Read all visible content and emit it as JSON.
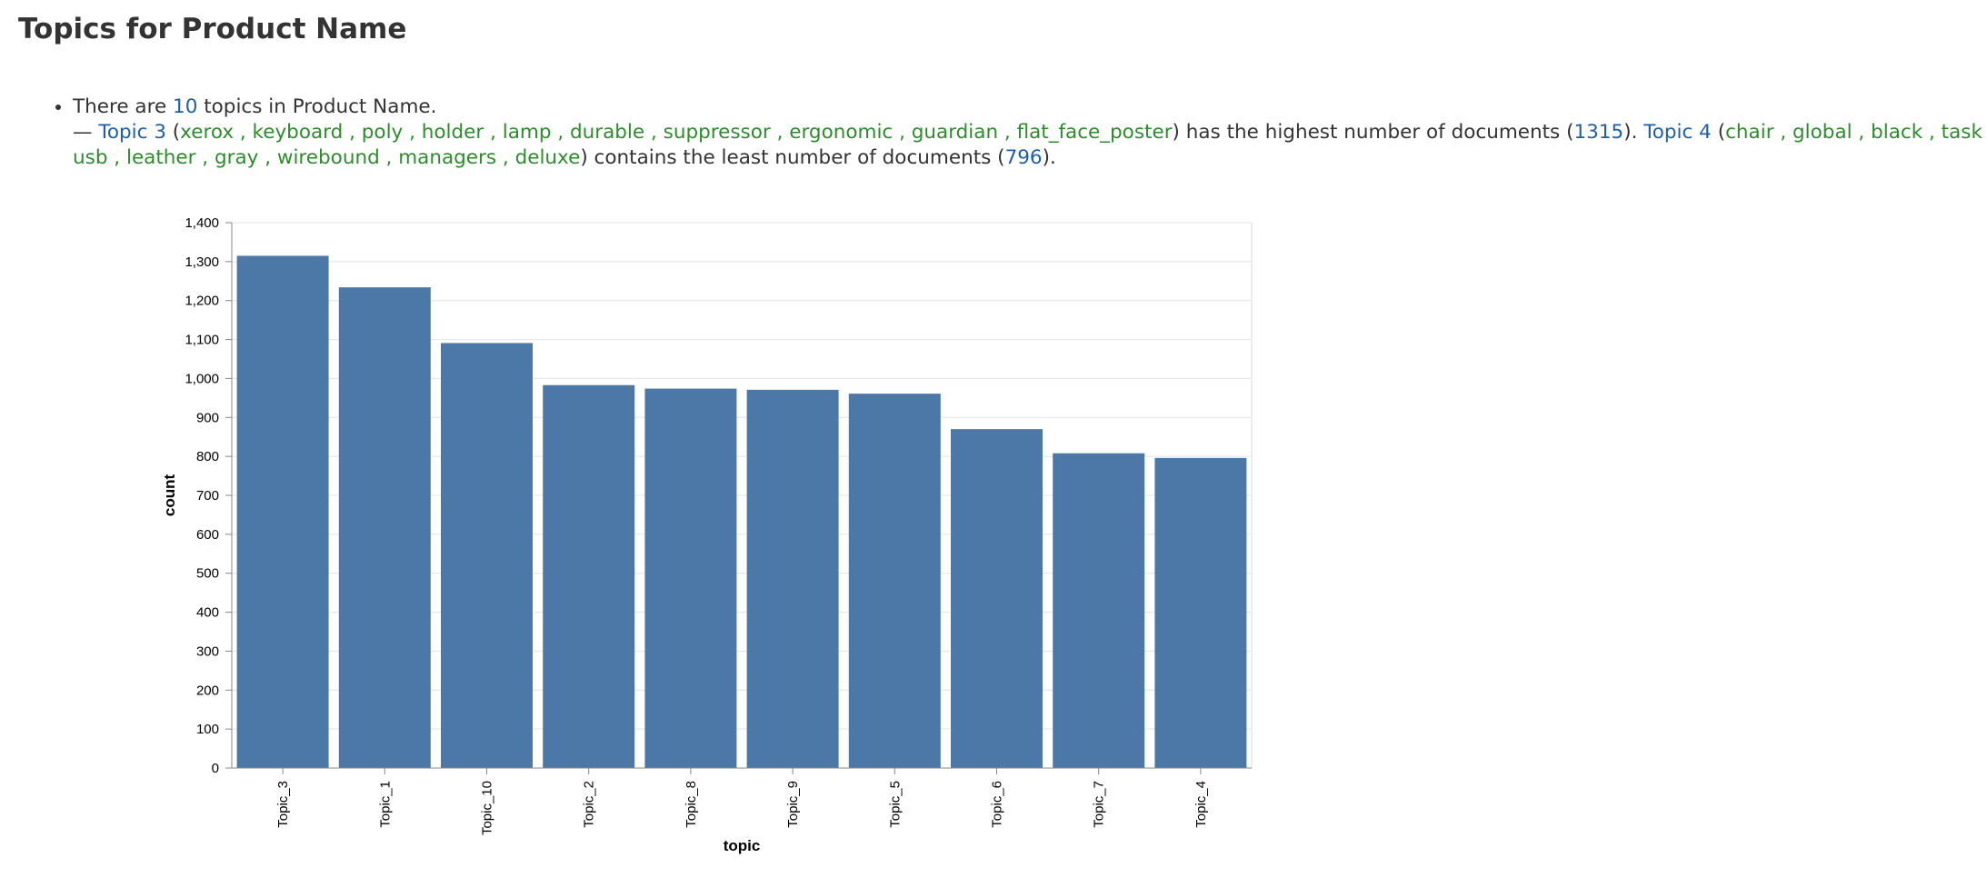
{
  "title": "Topics for Product Name",
  "summary": [
    [
      {
        "text": "There are ",
        "color": "#333333"
      },
      {
        "text": "10",
        "color": "#1f5fa6"
      },
      {
        "text": " topics in Product Name.",
        "color": "#333333"
      }
    ],
    [
      {
        "text": "— ",
        "color": "#333333"
      },
      {
        "text": "Topic 3",
        "color": "#1f5fa6"
      },
      {
        "text": " (",
        "color": "#333333"
      },
      {
        "text": "xerox , keyboard , poly , holder , lamp , durable , suppressor , ergonomic , guardian , flat_face_poster",
        "color": "#2e8b2e"
      },
      {
        "text": ") has the highest number of documents (",
        "color": "#333333"
      },
      {
        "text": "1315",
        "color": "#1f5fa6"
      },
      {
        "text": "). ",
        "color": "#333333"
      },
      {
        "text": "Topic 4",
        "color": "#1f5fa6"
      },
      {
        "text": " (",
        "color": "#333333"
      },
      {
        "text": "chair , global , black , task , usb , leather , gray , wirebound , managers , deluxe",
        "color": "#2e8b2e"
      },
      {
        "text": ") contains the least number of documents (",
        "color": "#333333"
      },
      {
        "text": "796",
        "color": "#1f5fa6"
      },
      {
        "text": ").",
        "color": "#333333"
      }
    ]
  ],
  "chart_data": {
    "type": "bar",
    "x_label": "topic",
    "y_label": "count",
    "categories": [
      "Topic_3",
      "Topic_1",
      "Topic_10",
      "Topic_2",
      "Topic_8",
      "Topic_9",
      "Topic_5",
      "Topic_6",
      "Topic_7",
      "Topic_4"
    ],
    "values": [
      1315,
      1234,
      1091,
      983,
      974,
      971,
      961,
      870,
      808,
      796
    ],
    "color": "#4c78a8",
    "ylim": [
      0,
      1400
    ],
    "yticks": [
      0,
      100,
      200,
      300,
      400,
      500,
      600,
      700,
      800,
      900,
      {
        "value": 1000,
        "label": "1,000"
      },
      {
        "value": 1100,
        "label": "1,100"
      },
      {
        "value": 1200,
        "label": "1,200"
      },
      {
        "value": 1300,
        "label": "1,300"
      },
      {
        "value": 1400,
        "label": "1,400"
      }
    ],
    "grid": true
  }
}
